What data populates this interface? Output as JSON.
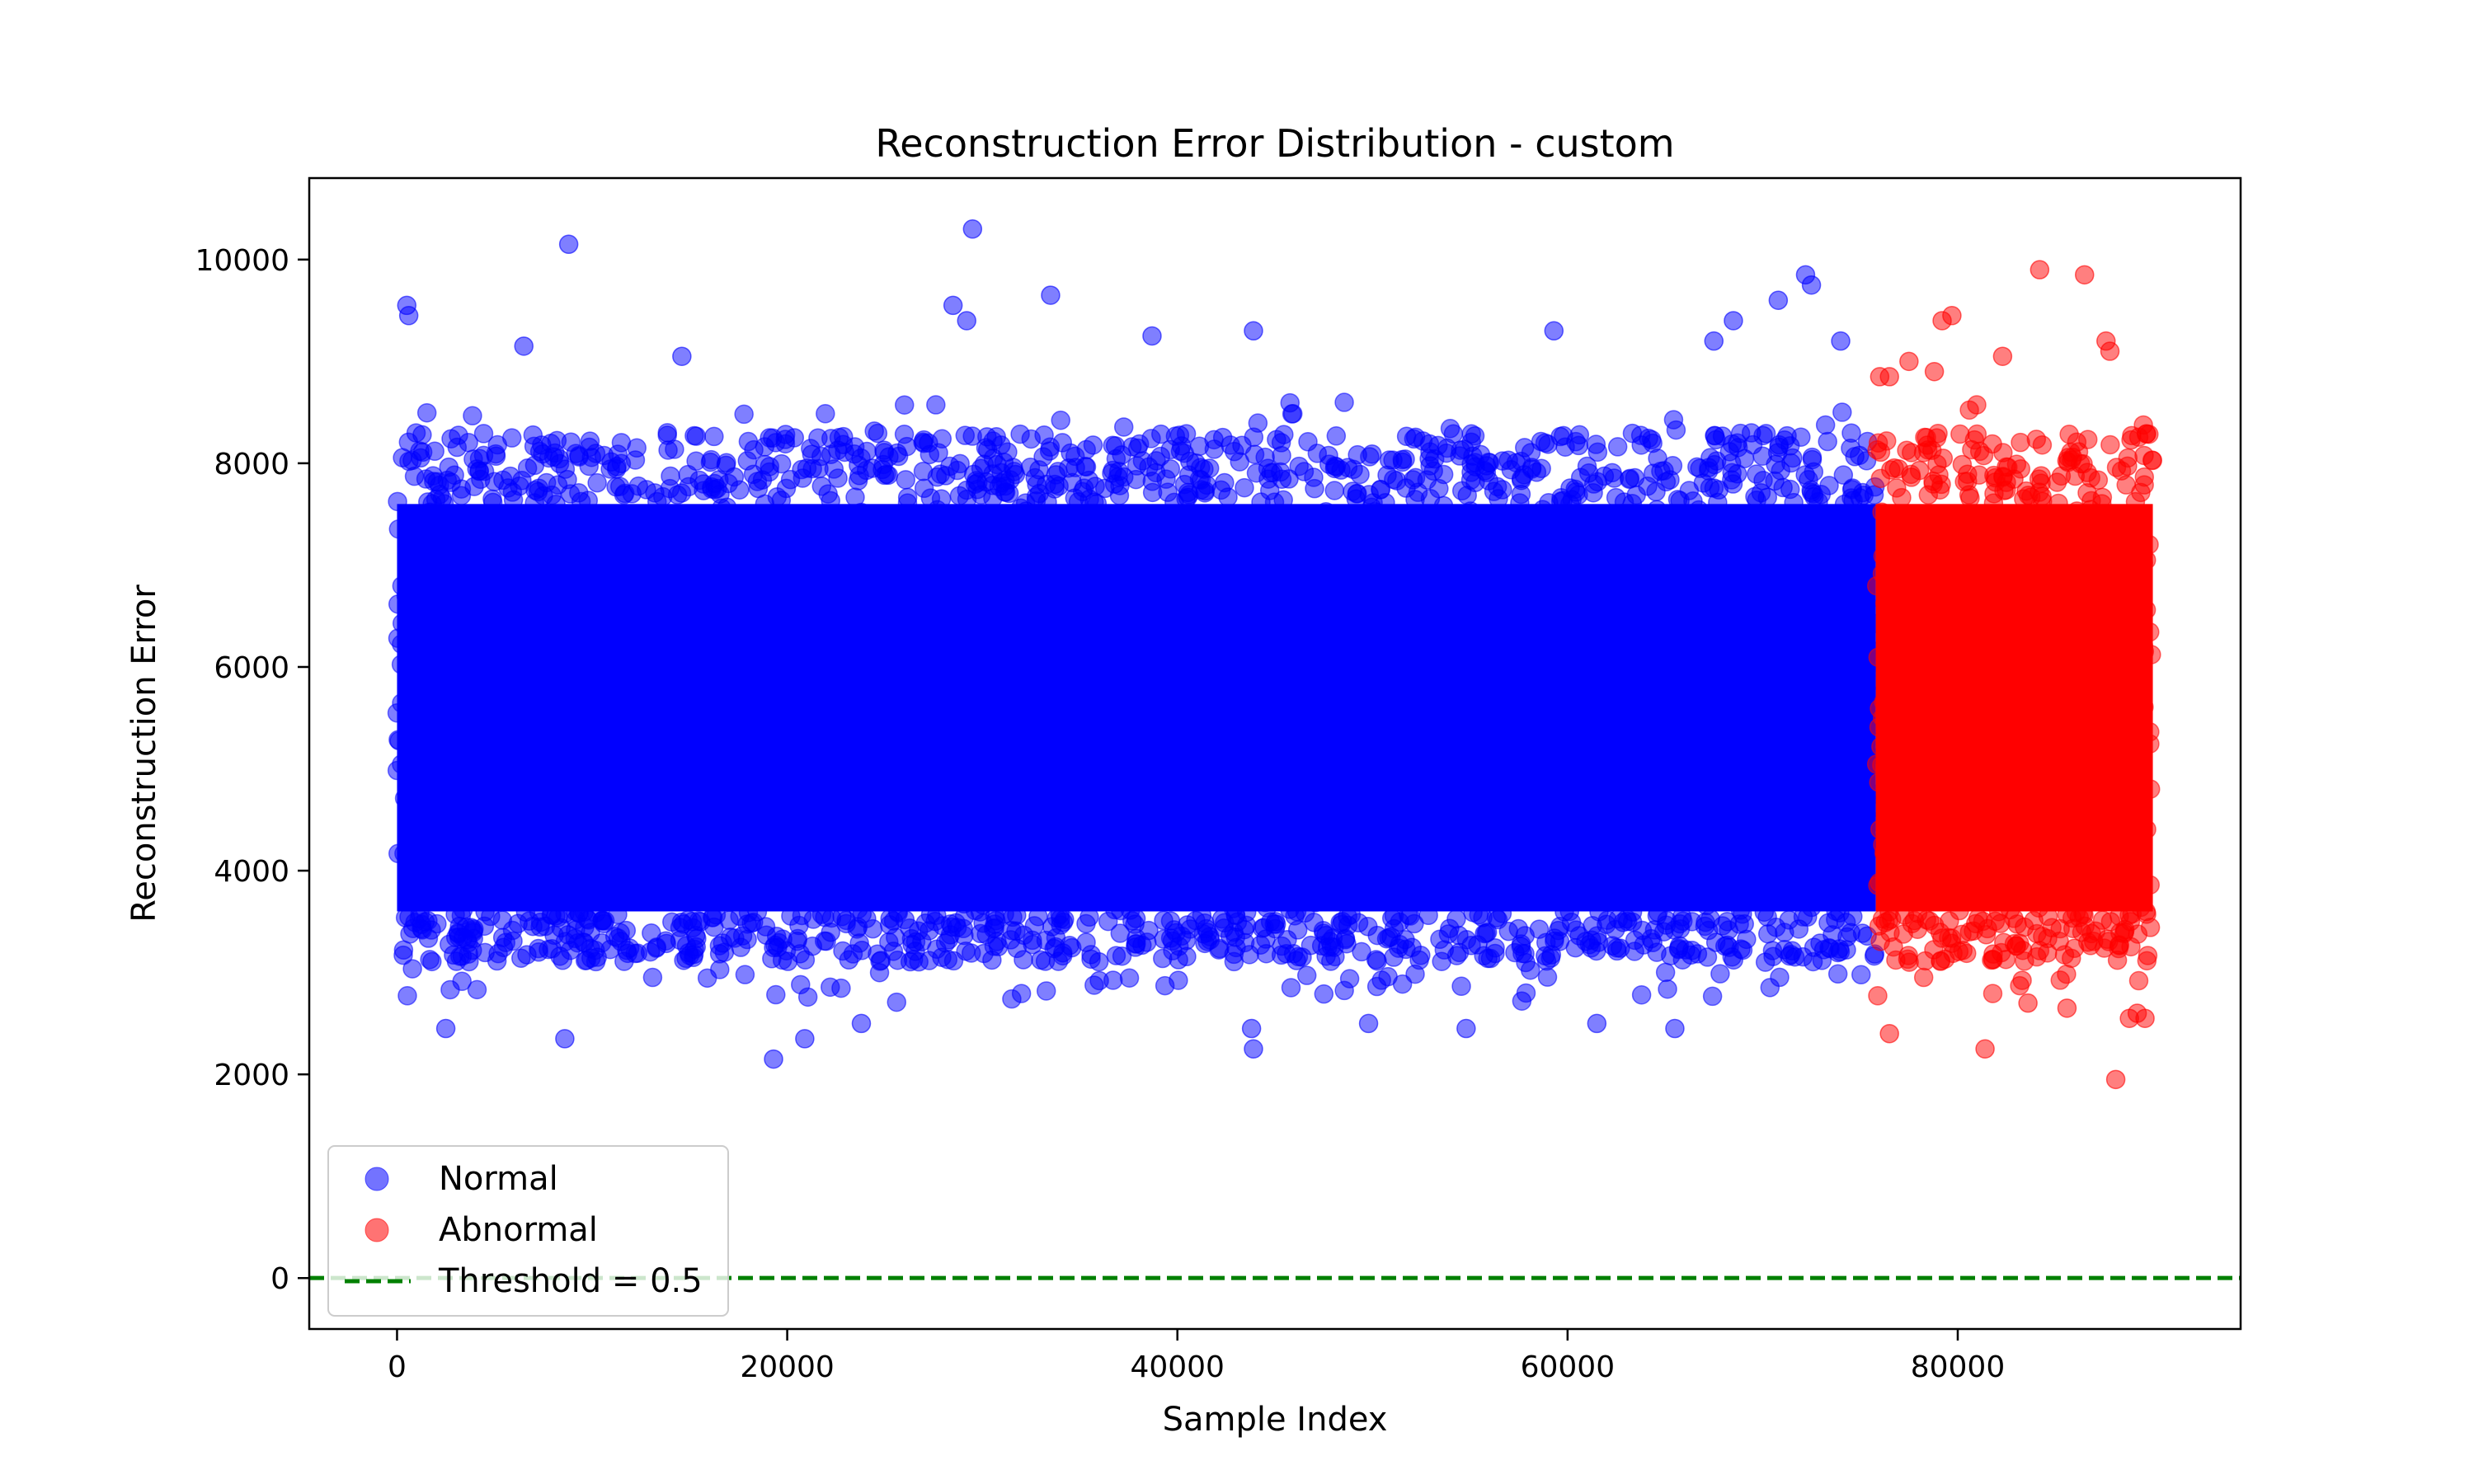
{
  "chart_data": {
    "type": "scatter",
    "title": "Reconstruction Error Distribution - custom",
    "xlabel": "Sample Index",
    "ylabel": "Reconstruction Error",
    "xlim": [
      -4500,
      94500
    ],
    "ylim": [
      -500,
      10800
    ],
    "x_ticks": [
      0,
      20000,
      40000,
      60000,
      80000
    ],
    "y_ticks": [
      0,
      2000,
      4000,
      6000,
      8000,
      10000
    ],
    "grid": false,
    "legend_position": "lower-left",
    "series": [
      {
        "name": "Normal",
        "color": "#0000ff",
        "x_range": [
          0,
          75800
        ],
        "y_core_range": [
          3600,
          7600
        ],
        "y_mean": 5500,
        "outliers": [
          [
            500,
            9550
          ],
          [
            600,
            9450
          ],
          [
            8800,
            10150
          ],
          [
            29500,
            10300
          ],
          [
            33500,
            9650
          ],
          [
            28500,
            9550
          ],
          [
            29200,
            9400
          ],
          [
            6500,
            9150
          ],
          [
            14600,
            9050
          ],
          [
            38700,
            9250
          ],
          [
            43900,
            9300
          ],
          [
            59300,
            9300
          ],
          [
            72200,
            9850
          ],
          [
            72500,
            9750
          ],
          [
            70800,
            9600
          ],
          [
            68500,
            9400
          ],
          [
            67500,
            9200
          ],
          [
            74000,
            9200
          ],
          [
            19300,
            2150
          ],
          [
            20900,
            2350
          ],
          [
            8600,
            2350
          ],
          [
            43800,
            2450
          ],
          [
            43900,
            2250
          ],
          [
            49800,
            2500
          ],
          [
            23800,
            2500
          ],
          [
            2500,
            2450
          ],
          [
            65500,
            2450
          ],
          [
            61500,
            2500
          ],
          [
            54800,
            2450
          ]
        ]
      },
      {
        "name": "Abnormal",
        "color": "#ff0000",
        "x_range": [
          75800,
          90000
        ],
        "y_core_range": [
          3600,
          7600
        ],
        "y_mean": 5500,
        "outliers": [
          [
            84200,
            9900
          ],
          [
            86500,
            9850
          ],
          [
            87600,
            9200
          ],
          [
            87800,
            9100
          ],
          [
            79700,
            9450
          ],
          [
            79200,
            9400
          ],
          [
            82300,
            9050
          ],
          [
            76500,
            8850
          ],
          [
            76000,
            8850
          ],
          [
            77500,
            9000
          ],
          [
            78800,
            8900
          ],
          [
            88100,
            1950
          ],
          [
            81400,
            2250
          ],
          [
            76500,
            2400
          ],
          [
            89200,
            2600
          ],
          [
            88800,
            2550
          ],
          [
            89600,
            2550
          ],
          [
            85600,
            2650
          ],
          [
            83600,
            2700
          ]
        ]
      }
    ],
    "threshold": {
      "label": "Threshold = 0.5",
      "value": 0.5,
      "color": "#008000",
      "style": "dashed"
    }
  }
}
